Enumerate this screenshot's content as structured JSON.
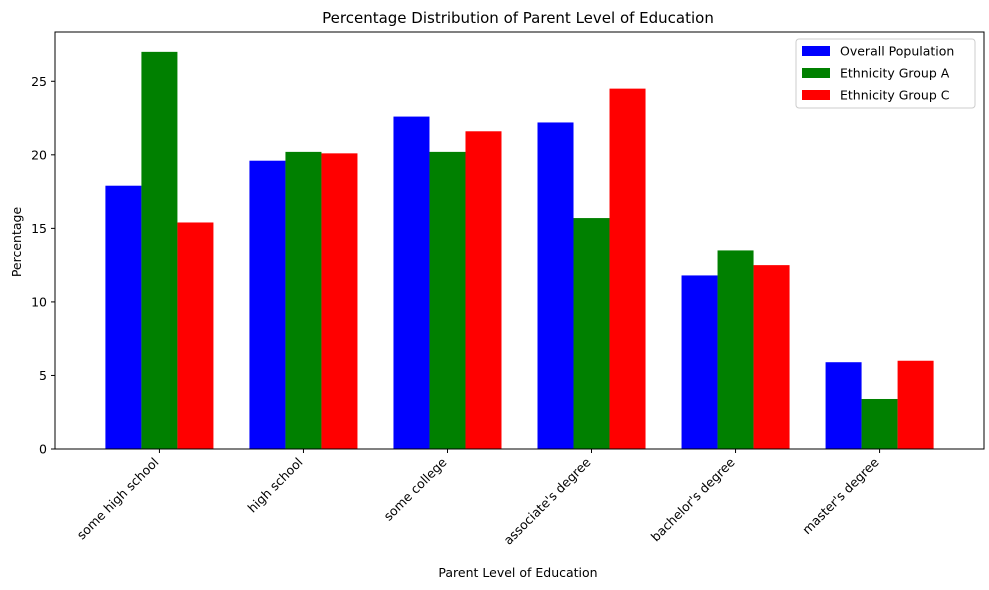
{
  "chart_data": {
    "type": "bar",
    "title": "Percentage Distribution of Parent Level of Education",
    "xlabel": "Parent Level of Education",
    "ylabel": "Percentage",
    "categories": [
      "some high school",
      "high school",
      "some college",
      "associate's degree",
      "bachelor's degree",
      "master's degree"
    ],
    "series": [
      {
        "name": "Overall Population",
        "color": "#0000ff",
        "values": [
          17.9,
          19.6,
          22.6,
          22.2,
          11.8,
          5.9
        ]
      },
      {
        "name": "Ethnicity Group A",
        "color": "#008000",
        "values": [
          27.0,
          20.2,
          20.2,
          15.7,
          13.5,
          3.4
        ]
      },
      {
        "name": "Ethnicity Group C",
        "color": "#ff0000",
        "values": [
          15.4,
          20.1,
          21.6,
          24.5,
          12.5,
          6.0
        ]
      }
    ],
    "ylim": [
      0,
      28.35
    ],
    "yticks": [
      0,
      5,
      10,
      15,
      20,
      25
    ],
    "grid": false,
    "legend_position": "top-right"
  }
}
